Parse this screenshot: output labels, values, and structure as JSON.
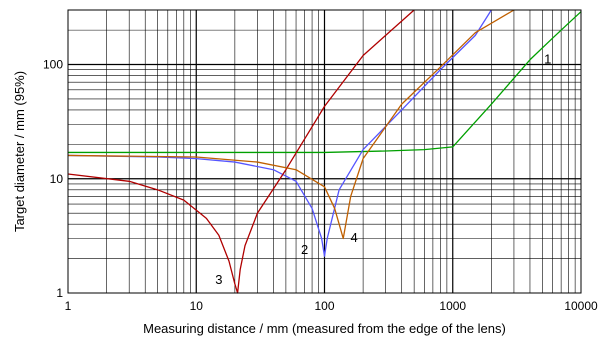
{
  "chart_data": {
    "type": "line",
    "title": "",
    "xlabel": "Measuring distance / mm (measured from the edge of the lens)",
    "ylabel": "Target diameter / mm (95%)",
    "xscale": "log",
    "yscale": "log",
    "xlim": [
      1,
      10000
    ],
    "ylim": [
      1,
      300
    ],
    "grid": true,
    "x_ticks": [
      {
        "value": 1,
        "label": "1"
      },
      {
        "value": 10,
        "label": "10"
      },
      {
        "value": 100,
        "label": "100"
      },
      {
        "value": 1000,
        "label": "1000"
      },
      {
        "value": 10000,
        "label": "10000"
      }
    ],
    "y_ticks": [
      {
        "value": 1,
        "label": "1"
      },
      {
        "value": 10,
        "label": "10"
      },
      {
        "value": 100,
        "label": "100"
      }
    ],
    "series": [
      {
        "name": "1",
        "color": "#00a000",
        "x": [
          1,
          10,
          100,
          300,
          600,
          1000,
          2000,
          4000,
          6000,
          8000,
          10000
        ],
        "y": [
          17,
          17,
          17,
          17.5,
          18,
          19,
          45,
          110,
          170,
          230,
          290
        ]
      },
      {
        "name": "2",
        "color": "#5555ff",
        "x": [
          1,
          5,
          10,
          20,
          40,
          60,
          80,
          95,
          100,
          105,
          130,
          200,
          400,
          800,
          1500,
          2000
        ],
        "y": [
          16,
          15.5,
          15,
          14,
          12,
          9.5,
          5.5,
          3,
          2.1,
          3,
          8,
          18,
          40,
          90,
          180,
          300
        ]
      },
      {
        "name": "3",
        "color": "#b00000",
        "x": [
          1,
          3,
          5,
          8,
          12,
          15,
          18,
          20,
          21,
          22,
          24,
          30,
          50,
          100,
          200,
          500
        ],
        "y": [
          11,
          9.5,
          8,
          6.5,
          4.5,
          3.2,
          1.9,
          1.2,
          1,
          1.6,
          2.6,
          5,
          12,
          43,
          120,
          300
        ]
      },
      {
        "name": "4",
        "color": "#c06000",
        "x": [
          1,
          10,
          30,
          60,
          100,
          120,
          140,
          160,
          200,
          400,
          800,
          1500,
          3000
        ],
        "y": [
          16,
          15.5,
          14,
          12,
          8.5,
          5.5,
          3,
          7,
          15,
          45,
          95,
          190,
          300
        ]
      }
    ],
    "annotations": [
      {
        "text": "1",
        "x": 5500,
        "y": 102
      },
      {
        "text": "2",
        "x": 70,
        "y": 2.2
      },
      {
        "text": "3",
        "x": 15,
        "y": 1.2
      },
      {
        "text": "4",
        "x": 170,
        "y": 2.8
      }
    ]
  }
}
